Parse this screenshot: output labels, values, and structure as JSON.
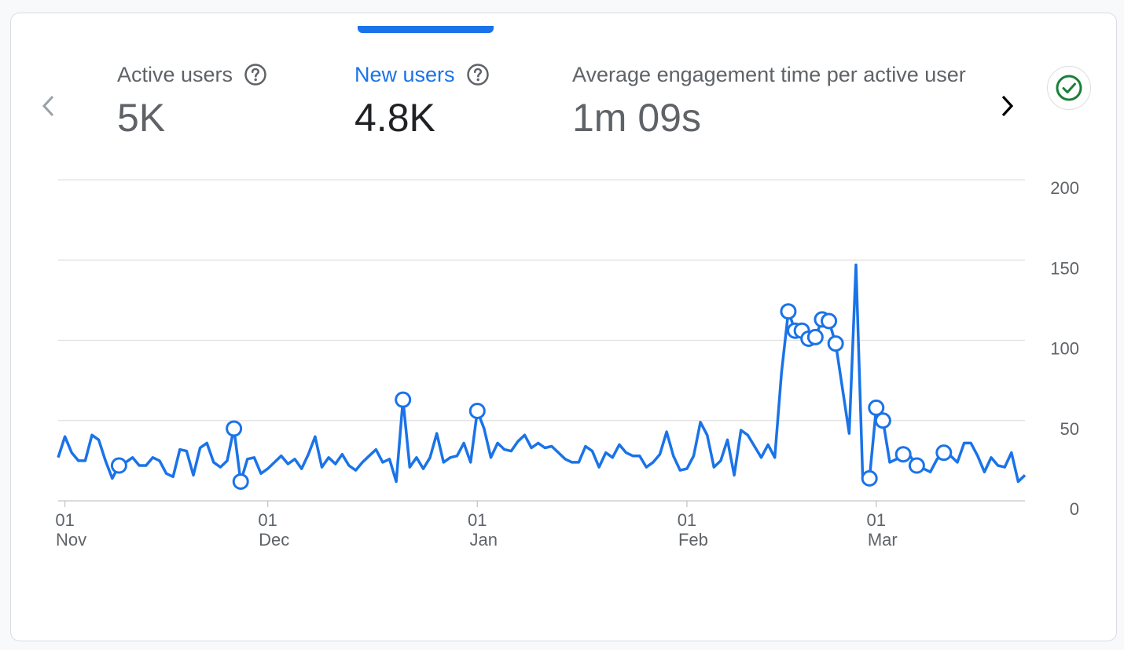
{
  "metrics": [
    {
      "label": "Active users",
      "value": "5K",
      "selected": false
    },
    {
      "label": "New users",
      "value": "4.8K",
      "selected": true
    },
    {
      "label": "Average engagement time per active user",
      "value": "1m 09s",
      "selected": false
    }
  ],
  "icons": {
    "help": "help-circle-icon",
    "prev": "chevron-left-icon",
    "next": "chevron-right-icon",
    "check": "check-circle-icon"
  },
  "colors": {
    "accent": "#1a73e8",
    "line": "#1a73e8",
    "grid": "#e0e0e0",
    "check": "#188038",
    "text_muted": "#5f6368"
  },
  "chart_data": {
    "type": "line",
    "x_start": "Oct 31",
    "y_ticks": [
      "0",
      "50",
      "100",
      "150",
      "200"
    ],
    "ylim": [
      0,
      200
    ],
    "x_ticks": [
      {
        "day": "01",
        "month": "Nov"
      },
      {
        "day": "01",
        "month": "Dec"
      },
      {
        "day": "01",
        "month": "Jan"
      },
      {
        "day": "01",
        "month": "Feb"
      },
      {
        "day": "01",
        "month": "Mar"
      }
    ],
    "grid": true,
    "series": [
      {
        "values": [
          27,
          40,
          30,
          25,
          25,
          41,
          38,
          25,
          14,
          22,
          24,
          27,
          22,
          22,
          27,
          25,
          17,
          15,
          32,
          31,
          16,
          33,
          36,
          24,
          21,
          25,
          45,
          12,
          26,
          27,
          17,
          20,
          24,
          28,
          23,
          26,
          20,
          29,
          40,
          21,
          27,
          23,
          29,
          22,
          19,
          24,
          28,
          32,
          24,
          26,
          12,
          63,
          21,
          27,
          20,
          27,
          42,
          24,
          27,
          28,
          36,
          24,
          56,
          45,
          27,
          36,
          32,
          31,
          37,
          41,
          33,
          36,
          33,
          34,
          30,
          26,
          24,
          24,
          34,
          31,
          21,
          30,
          27,
          35,
          30,
          28,
          28,
          21,
          24,
          29,
          43,
          28,
          19,
          20,
          28,
          49,
          41,
          21,
          25,
          38,
          16,
          44,
          41,
          34,
          27,
          35,
          27,
          80,
          118,
          106,
          106,
          101,
          102,
          113,
          112,
          98,
          70,
          42,
          147,
          14,
          14,
          58,
          50,
          24,
          26,
          29,
          28,
          22,
          20,
          18,
          26,
          30,
          28,
          24,
          36,
          36,
          28,
          18,
          27,
          22,
          21,
          30,
          12,
          16
        ],
        "markers": [
          9,
          26,
          27,
          51,
          62,
          108,
          109,
          110,
          111,
          112,
          113,
          114,
          115,
          120,
          121,
          122,
          125,
          127,
          131
        ]
      }
    ]
  }
}
